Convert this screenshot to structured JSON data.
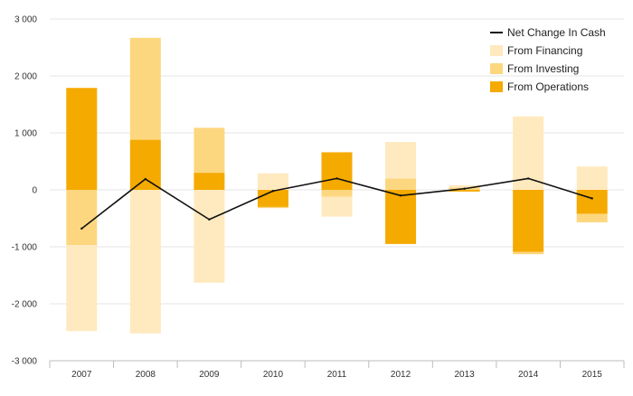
{
  "chart_data": {
    "type": "bar",
    "subtype": "stacked-with-line",
    "categories": [
      "2007",
      "2008",
      "2009",
      "2010",
      "2011",
      "2012",
      "2013",
      "2014",
      "2015"
    ],
    "series": [
      {
        "name": "From Operations",
        "kind": "bar",
        "color": "#F5AA00",
        "values": [
          1790,
          880,
          300,
          -300,
          660,
          -950,
          -30,
          -1090,
          -420
        ]
      },
      {
        "name": "From Investing",
        "kind": "bar",
        "color": "#FDD77F",
        "values": [
          -970,
          1790,
          790,
          -20,
          -120,
          200,
          40,
          -40,
          -150
        ]
      },
      {
        "name": "From Financing",
        "kind": "bar",
        "color": "#FFE9BE",
        "values": [
          -1510,
          -2520,
          -1630,
          290,
          -350,
          640,
          40,
          1290,
          410
        ]
      },
      {
        "name": "Net Change In Cash",
        "kind": "line",
        "color": "#111111",
        "values": [
          -680,
          190,
          -520,
          -20,
          200,
          -100,
          20,
          200,
          -150
        ]
      }
    ],
    "legend": [
      "Net Change In Cash",
      "From Financing",
      "From Investing",
      "From Operations"
    ],
    "legend_position": "top-right",
    "ylim": [
      -3000,
      3000
    ],
    "yticks": [
      -3000,
      -2000,
      -1000,
      0,
      1000,
      2000,
      3000
    ],
    "ytick_labels": [
      "-3 000",
      "-2 000",
      "-1 000",
      "0",
      "1 000",
      "2 000",
      "3 000"
    ],
    "grid": true,
    "title": "",
    "xlabel": "",
    "ylabel": ""
  }
}
